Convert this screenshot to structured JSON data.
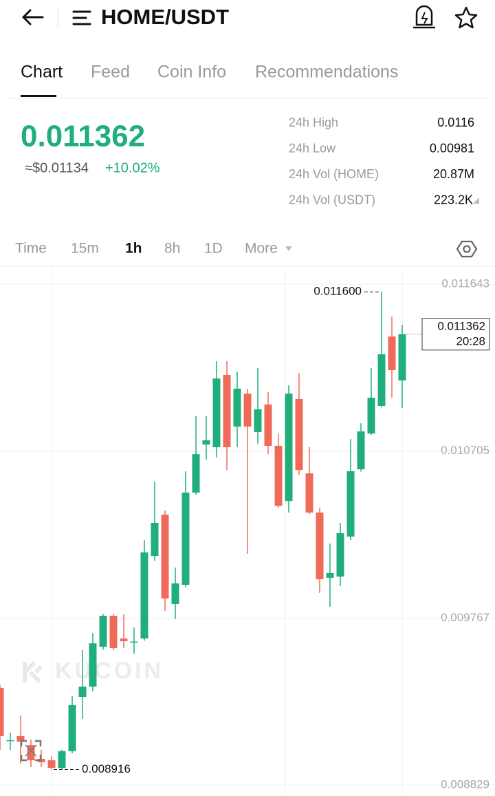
{
  "header": {
    "title": "HOME/USDT"
  },
  "tabs": [
    "Chart",
    "Feed",
    "Coin Info",
    "Recommendations"
  ],
  "ticker": {
    "price": "0.011362",
    "fiat": "≈$0.01134",
    "change": "+10.02%"
  },
  "stats": [
    {
      "label": "24h High",
      "value": "0.0116"
    },
    {
      "label": "24h Low",
      "value": "0.00981"
    },
    {
      "label": "24h Vol (HOME)",
      "value": "20.87M"
    },
    {
      "label": "24h Vol (USDT)",
      "value": "223.2K"
    }
  ],
  "intervals": [
    "Time",
    "15m",
    "1h",
    "8h",
    "1D",
    "More"
  ],
  "watermark": "KUCOIN",
  "chart_data": {
    "type": "candlestick",
    "up_color": "#1fae7c",
    "down_color": "#ef6a58",
    "ylim": [
      0.008775,
      0.01174
    ],
    "yticks": [
      0.011643,
      0.010705,
      0.009767,
      0.008829
    ],
    "grid": true,
    "open": [
      0.009374,
      0.009077,
      0.009104,
      0.009053,
      0.008976,
      0.008968,
      0.008925,
      0.009019,
      0.009324,
      0.009382,
      0.009606,
      0.00978,
      0.009652,
      0.009631,
      0.009652,
      0.010116,
      0.010348,
      0.009846,
      0.009954,
      0.010472,
      0.010742,
      0.010727,
      0.011133,
      0.010843,
      0.011028,
      0.010812,
      0.010967,
      0.010735,
      0.010425,
      0.010998,
      0.01058,
      0.01036,
      0.009993,
      0.01,
      0.010225,
      0.010603,
      0.010804,
      0.010959,
      0.011349,
      0.011102
    ],
    "high": [
      0.009393,
      0.009123,
      0.00922,
      0.009084,
      0.009026,
      0.00899,
      0.009027,
      0.009328,
      0.009587,
      0.009683,
      0.00979,
      0.00979,
      0.009788,
      0.009714,
      0.010205,
      0.010534,
      0.010371,
      0.010051,
      0.010592,
      0.010901,
      0.010901,
      0.01121,
      0.01121,
      0.011152,
      0.011056,
      0.011172,
      0.011036,
      0.010804,
      0.011075,
      0.011144,
      0.010727,
      0.010387,
      0.010186,
      0.010302,
      0.010773,
      0.010862,
      0.011172,
      0.0116,
      0.011461,
      0.011415
    ],
    "low": [
      0.009026,
      0.009026,
      0.008949,
      0.00893,
      0.00893,
      0.008916,
      0.008916,
      0.009007,
      0.0092,
      0.009355,
      0.00959,
      0.009587,
      0.009598,
      0.009567,
      0.00964,
      0.010089,
      0.009807,
      0.009761,
      0.00994,
      0.01046,
      0.010657,
      0.010669,
      0.010599,
      0.010727,
      0.010128,
      0.010746,
      0.010688,
      0.010387,
      0.01036,
      0.010572,
      0.01035,
      0.009908,
      0.00983,
      0.009946,
      0.010205,
      0.01059,
      0.010797,
      0.01095,
      0.011005,
      0.010947
    ],
    "close": [
      0.009104,
      0.009081,
      0.009073,
      0.008968,
      0.008957,
      0.008925,
      0.009019,
      0.009278,
      0.009382,
      0.009625,
      0.00978,
      0.009598,
      0.009637,
      0.009635,
      0.010136,
      0.010302,
      0.009877,
      0.009962,
      0.010472,
      0.010688,
      0.010766,
      0.011113,
      0.010727,
      0.011056,
      0.010843,
      0.01094,
      0.010735,
      0.010398,
      0.011028,
      0.010599,
      0.01036,
      0.009985,
      0.01002,
      0.010244,
      0.010592,
      0.010816,
      0.011005,
      0.011249,
      0.01116,
      0.011362
    ],
    "high_marker": {
      "value": 0.0116,
      "label": "0.011600"
    },
    "low_marker": 0.008916,
    "last_price": 0.011362,
    "countdown": "20:28"
  }
}
